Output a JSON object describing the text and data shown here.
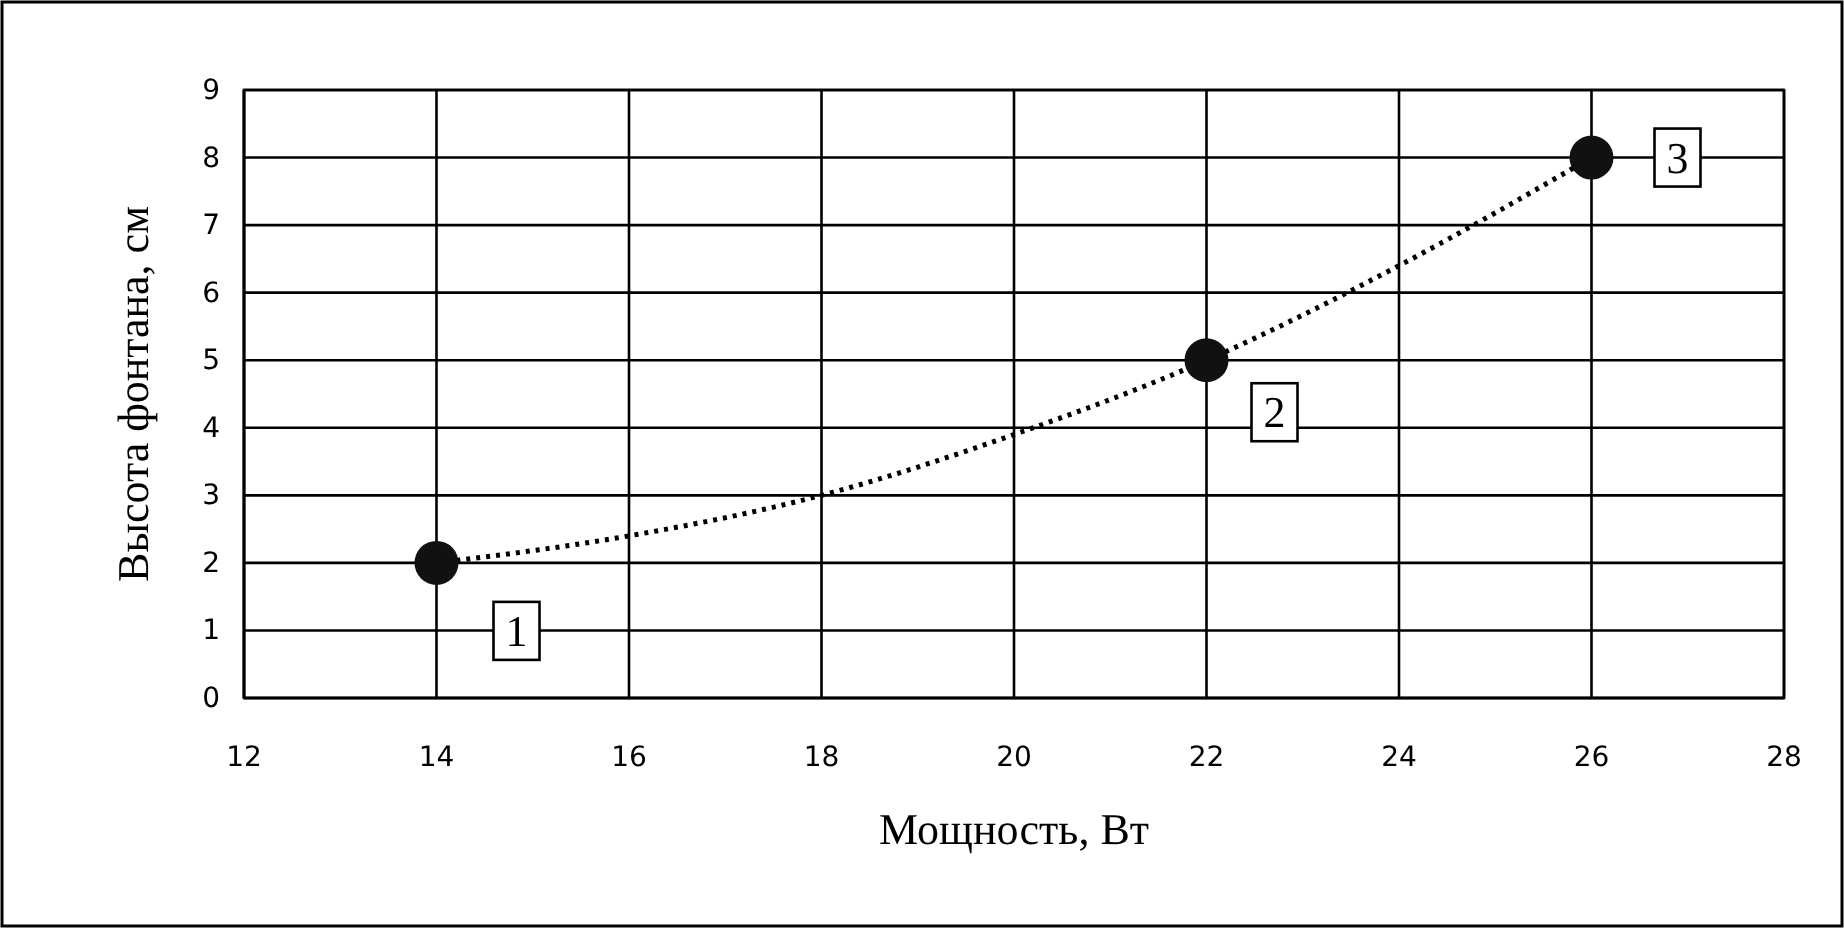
{
  "chart_data": {
    "type": "scatter",
    "xlabel": "Мощность, Вт",
    "ylabel": "Высота фонтана, см",
    "series": [
      {
        "type": "line",
        "x": [
          14,
          16,
          18,
          20,
          22,
          24,
          26
        ],
        "values": [
          2,
          2.4,
          3,
          3.9,
          5,
          6.4,
          8
        ],
        "color": "#000000",
        "line_style": "dotted",
        "marker": "none"
      },
      {
        "x": [
          14,
          22,
          26
        ],
        "values": [
          2,
          5,
          8
        ],
        "color": "#111111",
        "marker": "circle"
      }
    ],
    "annotations": [
      {
        "text": "1",
        "x": 14,
        "y": 2
      },
      {
        "text": "2",
        "x": 22,
        "y": 5
      },
      {
        "text": "3",
        "x": 26,
        "y": 8
      }
    ],
    "xlim": [
      12,
      28
    ],
    "xticks": [
      12,
      14,
      16,
      18,
      20,
      22,
      24,
      26,
      28
    ],
    "ylim": [
      0,
      9
    ],
    "yticks": [
      0,
      1,
      2,
      3,
      4,
      5,
      6,
      7,
      8,
      9
    ],
    "grid": true
  }
}
